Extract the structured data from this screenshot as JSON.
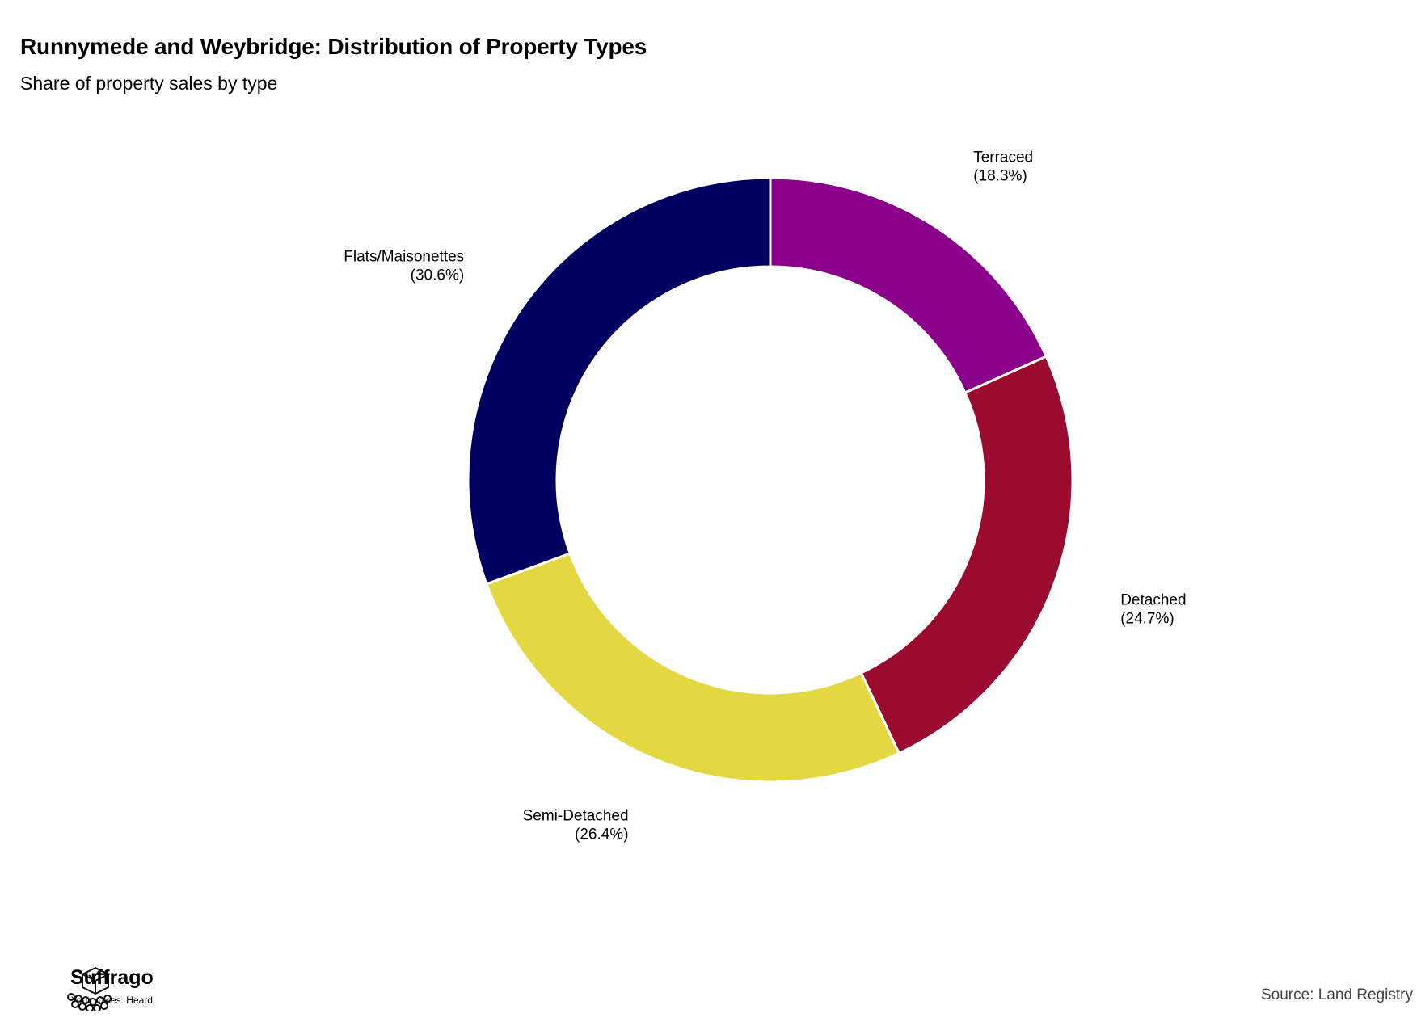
{
  "header": {
    "title": "Runnymede and Weybridge: Distribution of Property Types",
    "subtitle": "Share of property sales by type"
  },
  "chart_data": {
    "type": "pie",
    "variant": "donut",
    "title": "Runnymede and Weybridge: Distribution of Property Types",
    "subtitle": "Share of property sales by type",
    "unit": "%",
    "slices": [
      {
        "label": "Terraced",
        "value": 18.3,
        "value_label": "(18.3%)",
        "color": "#8B008B"
      },
      {
        "label": "Detached",
        "value": 24.7,
        "value_label": "(24.7%)",
        "color": "#9B0A2F"
      },
      {
        "label": "Semi-Detached",
        "value": 26.4,
        "value_label": "(26.4%)",
        "color": "#E3D841"
      },
      {
        "label": "Flats/Maisonettes",
        "value": 30.6,
        "value_label": "(30.6%)",
        "color": "#010060"
      }
    ],
    "start_angle": "12 o'clock",
    "direction": "clockwise",
    "legend": "none (labels next to slices)"
  },
  "footer": {
    "brand_name": "Suffrago",
    "tagline": "Your voices. Heard.",
    "source": "Source: Land Registry"
  }
}
